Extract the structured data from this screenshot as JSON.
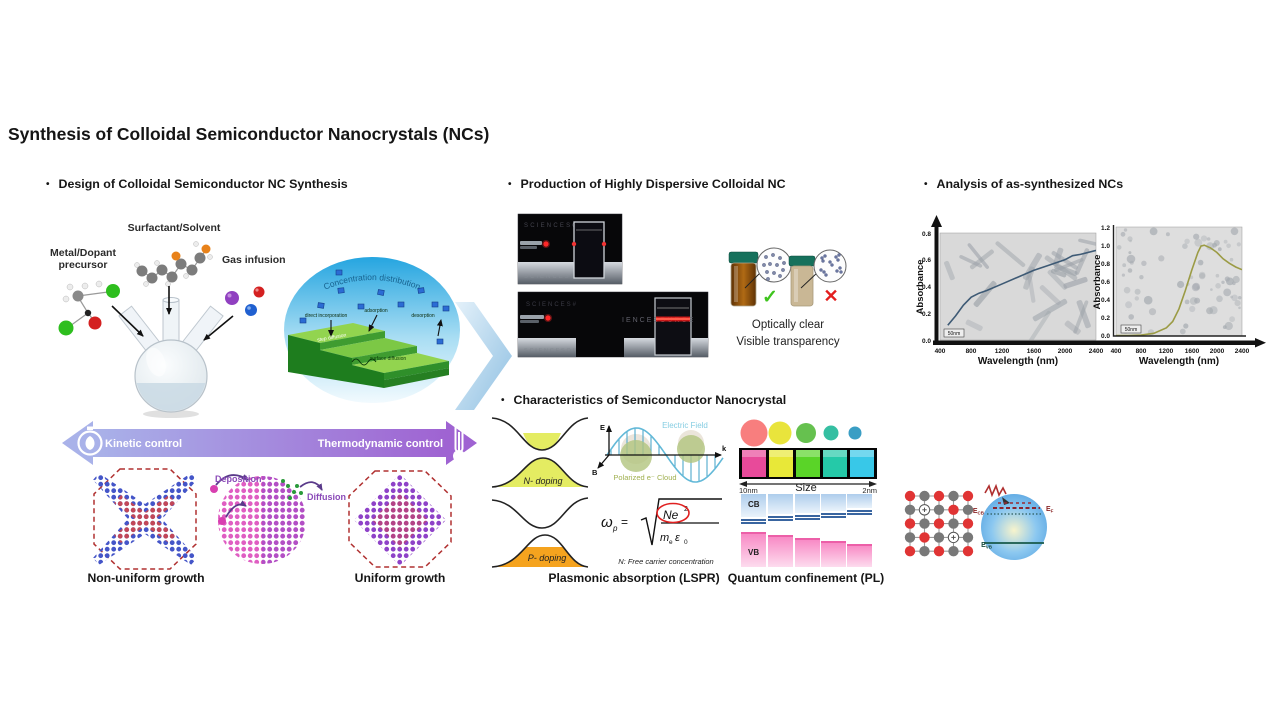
{
  "title": "Synthesis of Colloidal Semiconductor Nanocrystals (NCs)",
  "bullet_char": "•",
  "design": {
    "heading": "Design of Colloidal Semiconductor NC Synthesis",
    "labels": {
      "surfactant": "Surfactant/Solvent",
      "metal1": "Metal/Dopant",
      "metal2": "precursor",
      "gas": "Gas infusion"
    },
    "growth": {
      "title": "Concentration distribution",
      "direct": "direct incorporation",
      "step": "step diffusion",
      "adsorption": "adsorption",
      "desorption": "desorption",
      "surface": "surface diffusion"
    },
    "control": {
      "left": "Kinetic control",
      "right": "Thermodynamic control"
    },
    "crystals": {
      "deposition": "Deposition",
      "diffusion": "Diffusion",
      "non_uniform": "Non-uniform growth",
      "uniform": "Uniform growth"
    }
  },
  "production": {
    "heading": "Production of Highly Dispersive Colloidal NC",
    "watermark": "SCIENCESOURCE",
    "watermark2": "SCIENCES#",
    "watermark3": "IENCESOURCE",
    "check": "✓",
    "cross": "✕",
    "caption1": "Optically clear",
    "caption2": "Visible transparency"
  },
  "characteristics": {
    "heading": "Characteristics of Semiconductor Nanocrystal",
    "n_doping": "N- doping",
    "p_doping": "P- doping",
    "efield": {
      "e": "E",
      "b": "B",
      "k": "k",
      "field": "Electric Field",
      "cloud": "Polarized e⁻ Cloud"
    },
    "formula": {
      "omega": "ω",
      "p": "p",
      "eq": "=",
      "ne": "Ne",
      "sq": "2",
      "m": "m",
      "me": "e",
      "eps": "ε",
      "eps0": "0",
      "note": "N: Free carrier concentration"
    },
    "lspr": "Plasmonic absorption (LSPR)",
    "quantum": {
      "size_min": "10nm",
      "size": "Size",
      "size_max": "2nm",
      "cb": "CB",
      "vb": "VB",
      "caption": "Quantum confinement (PL)",
      "dot_colors": [
        "#f87e7e",
        "#e9e43c",
        "#66c14f",
        "#35bfa2",
        "#3a9ec4"
      ],
      "vial_colors": [
        "#e84a9a",
        "#e8e838",
        "#5ad428",
        "#25c9a8",
        "#38c8e8"
      ]
    }
  },
  "analysis": {
    "heading": "Analysis of as-synthesized NCs"
  },
  "bandsphere": {
    "e": "E",
    "cb": "CB",
    "f": "F",
    "vb": "VB"
  },
  "chart_data": [
    {
      "type": "line",
      "xlabel": "Wavelength (nm)",
      "ylabel": "Absorbance",
      "xlim": [
        400,
        2400
      ],
      "ylim": [
        0,
        0.8
      ],
      "xticks": [
        400,
        800,
        1200,
        1600,
        2000,
        2400
      ],
      "yticks": [
        "0.0",
        "0.2",
        "0.4",
        "0.6",
        "0.8"
      ],
      "x": [
        500,
        600,
        700,
        800,
        900,
        1000,
        1200,
        1400,
        1600,
        1800,
        2000,
        2100,
        2200,
        2400
      ],
      "y": [
        0.11,
        0.18,
        0.26,
        0.32,
        0.35,
        0.37,
        0.42,
        0.47,
        0.52,
        0.56,
        0.6,
        0.63,
        0.64,
        0.67
      ],
      "line_color": "#3e5a75",
      "scale_bar": "50nm",
      "background": "TEM image of nanorods"
    },
    {
      "type": "line",
      "xlabel": "Wavelength (nm)",
      "ylabel": "Absorbance",
      "xlim": [
        400,
        2400
      ],
      "ylim": [
        0,
        1.2
      ],
      "xticks": [
        400,
        800,
        1200,
        1600,
        2000,
        2400
      ],
      "yticks": [
        "0.0",
        "0.2",
        "0.4",
        "0.6",
        "0.8",
        "1.0",
        "1.2"
      ],
      "x": [
        400,
        600,
        800,
        1000,
        1200,
        1300,
        1400,
        1500,
        1600,
        1700,
        1750,
        1800,
        1900,
        2000,
        2100,
        2200,
        2300,
        2400
      ],
      "y": [
        0.005,
        0.005,
        0.01,
        0.03,
        0.09,
        0.16,
        0.3,
        0.5,
        0.72,
        0.92,
        0.99,
        1.0,
        0.97,
        0.92,
        0.85,
        0.8,
        0.76,
        0.73
      ],
      "line_color": "#9b9b45",
      "scale_bar": "50nm",
      "background": "TEM image of spherical nanoparticles"
    }
  ]
}
